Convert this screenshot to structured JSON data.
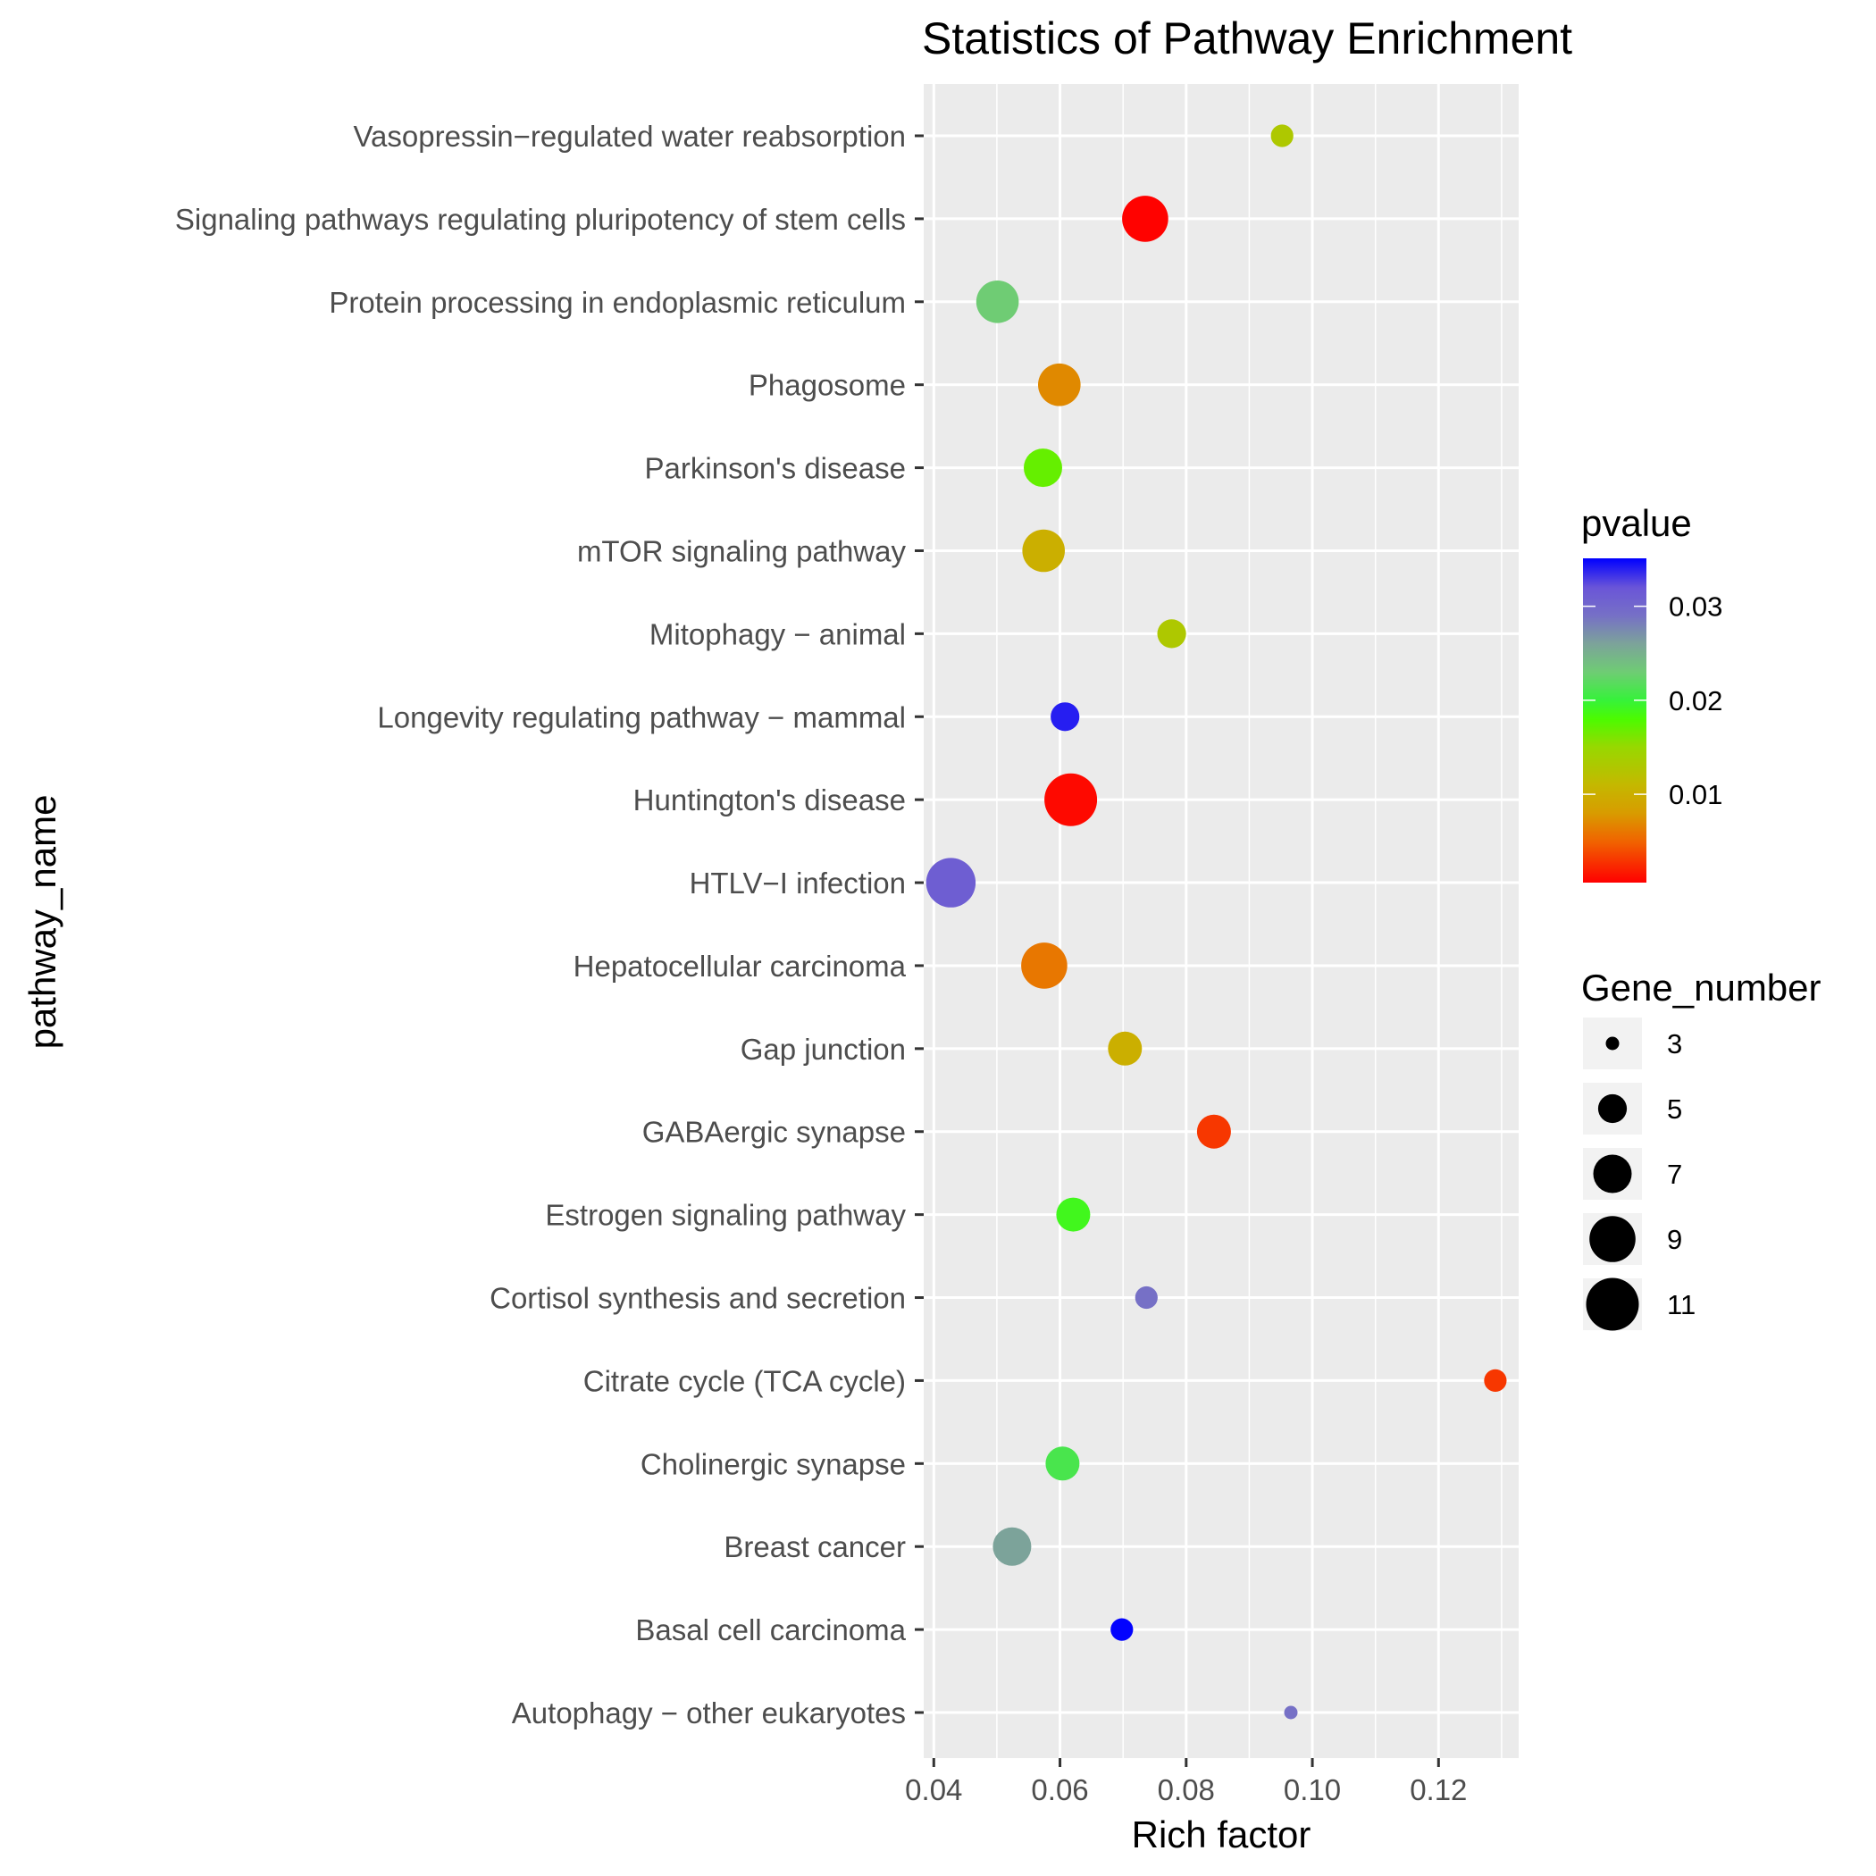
{
  "chart_data": {
    "type": "scatter",
    "title": "Statistics of Pathway Enrichment",
    "xlabel": "Rich factor",
    "ylabel": "pathway_name",
    "xlim": [
      0.0384,
      0.1327
    ],
    "x_ticks": [
      0.04,
      0.06,
      0.08,
      0.1,
      0.12
    ],
    "x_tick_labels": [
      "0.04",
      "0.06",
      "0.08",
      "0.10",
      "0.12"
    ],
    "grid": true,
    "categories": [
      "Vasopressin−regulated water reabsorption",
      "Signaling pathways regulating pluripotency of stem cells",
      "Protein processing in endoplasmic reticulum",
      "Phagosome",
      "Parkinson's disease",
      "mTOR signaling pathway",
      "Mitophagy − animal",
      "Longevity regulating pathway − mammal",
      "Huntington's disease",
      "HTLV−I infection",
      "Hepatocellular carcinoma",
      "Gap junction",
      "GABAergic synapse",
      "Estrogen signaling pathway",
      "Cortisol synthesis and secretion",
      "Citrate cycle (TCA cycle)",
      "Cholinergic synapse",
      "Breast cancer",
      "Basal cell carcinoma",
      "Autophagy − other eukaryotes"
    ],
    "points": [
      {
        "pathway": "Vasopressin−regulated water reabsorption",
        "rich_factor": 0.0952,
        "gene_number": 4,
        "pvalue": 0.013
      },
      {
        "pathway": "Signaling pathways regulating pluripotency of stem cells",
        "rich_factor": 0.0735,
        "gene_number": 9,
        "pvalue": 0.0007
      },
      {
        "pathway": "Protein processing in endoplasmic reticulum",
        "rich_factor": 0.0501,
        "gene_number": 8,
        "pvalue": 0.023
      },
      {
        "pathway": "Phagosome",
        "rich_factor": 0.0599,
        "gene_number": 8,
        "pvalue": 0.007
      },
      {
        "pathway": "Parkinson's disease",
        "rich_factor": 0.0573,
        "gene_number": 7,
        "pvalue": 0.017
      },
      {
        "pathway": "mTOR signaling pathway",
        "rich_factor": 0.0574,
        "gene_number": 8,
        "pvalue": 0.01
      },
      {
        "pathway": "Mitophagy − animal",
        "rich_factor": 0.0777,
        "gene_number": 5,
        "pvalue": 0.013
      },
      {
        "pathway": "Longevity regulating pathway − mammal",
        "rich_factor": 0.0608,
        "gene_number": 5,
        "pvalue": 0.034
      },
      {
        "pathway": "Huntington's disease",
        "rich_factor": 0.0617,
        "gene_number": 11,
        "pvalue": 0.001
      },
      {
        "pathway": "HTLV−I infection",
        "rich_factor": 0.0427,
        "gene_number": 10,
        "pvalue": 0.031
      },
      {
        "pathway": "Hepatocellular carcinoma",
        "rich_factor": 0.0575,
        "gene_number": 9,
        "pvalue": 0.006
      },
      {
        "pathway": "Gap junction",
        "rich_factor": 0.0703,
        "gene_number": 6,
        "pvalue": 0.01
      },
      {
        "pathway": "GABAergic synapse",
        "rich_factor": 0.0844,
        "gene_number": 6,
        "pvalue": 0.003
      },
      {
        "pathway": "Estrogen signaling pathway",
        "rich_factor": 0.0621,
        "gene_number": 6,
        "pvalue": 0.019
      },
      {
        "pathway": "Cortisol synthesis and secretion",
        "rich_factor": 0.0737,
        "gene_number": 4,
        "pvalue": 0.029
      },
      {
        "pathway": "Citrate cycle (TCA cycle)",
        "rich_factor": 0.129,
        "gene_number": 4,
        "pvalue": 0.003
      },
      {
        "pathway": "Cholinergic synapse",
        "rich_factor": 0.0604,
        "gene_number": 6,
        "pvalue": 0.021
      },
      {
        "pathway": "Breast cancer",
        "rich_factor": 0.0524,
        "gene_number": 7,
        "pvalue": 0.026
      },
      {
        "pathway": "Basal cell carcinoma",
        "rich_factor": 0.0698,
        "gene_number": 4,
        "pvalue": 0.035
      },
      {
        "pathway": "Autophagy − other eukaryotes",
        "rich_factor": 0.0966,
        "gene_number": 3,
        "pvalue": 0.029
      }
    ],
    "color_legend": {
      "title": "pvalue",
      "range": [
        0.0006,
        0.0351
      ],
      "ticks": [
        0.01,
        0.02,
        0.03
      ],
      "tick_labels": [
        "0.01",
        "0.02",
        "0.03"
      ],
      "stops": [
        {
          "value": 0.0006,
          "color": "#ff0000"
        },
        {
          "value": 0.005,
          "color": "#f06400"
        },
        {
          "value": 0.008,
          "color": "#d89c00"
        },
        {
          "value": 0.011,
          "color": "#c4b800"
        },
        {
          "value": 0.015,
          "color": "#98d800"
        },
        {
          "value": 0.018,
          "color": "#4cfb00"
        },
        {
          "value": 0.02,
          "color": "#36f23a"
        },
        {
          "value": 0.023,
          "color": "#6fcc74"
        },
        {
          "value": 0.026,
          "color": "#7ca39a"
        },
        {
          "value": 0.029,
          "color": "#7670c6"
        },
        {
          "value": 0.032,
          "color": "#6a55d8"
        },
        {
          "value": 0.0351,
          "color": "#0000ff"
        }
      ],
      "placement": "right"
    },
    "size_legend": {
      "title": "Gene_number",
      "values": [
        3,
        5,
        7,
        9,
        11
      ],
      "labels": [
        "3",
        "5",
        "7",
        "9",
        "11"
      ],
      "placement": "right"
    }
  }
}
